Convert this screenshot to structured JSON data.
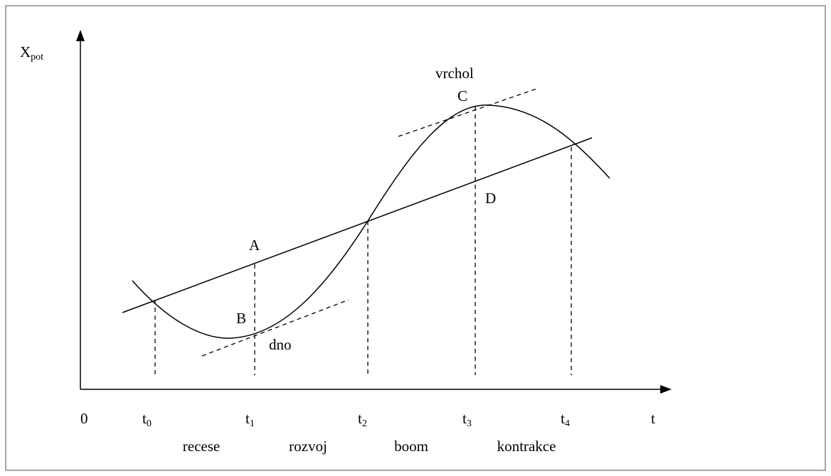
{
  "y_axis_label": {
    "text": "X",
    "subscript": "pot"
  },
  "origin": "0",
  "x_axis_label": "t",
  "time_points": [
    {
      "text": "t",
      "subscript": "0"
    },
    {
      "text": "t",
      "subscript": "1"
    },
    {
      "text": "t",
      "subscript": "2"
    },
    {
      "text": "t",
      "subscript": "3"
    },
    {
      "text": "t",
      "subscript": "4"
    }
  ],
  "phases": [
    "recese",
    "rozvoj",
    "boom",
    "kontrakce"
  ],
  "points": [
    "A",
    "B",
    "C",
    "D"
  ],
  "annotations": {
    "peak": "vrchol",
    "trough": "dno"
  }
}
